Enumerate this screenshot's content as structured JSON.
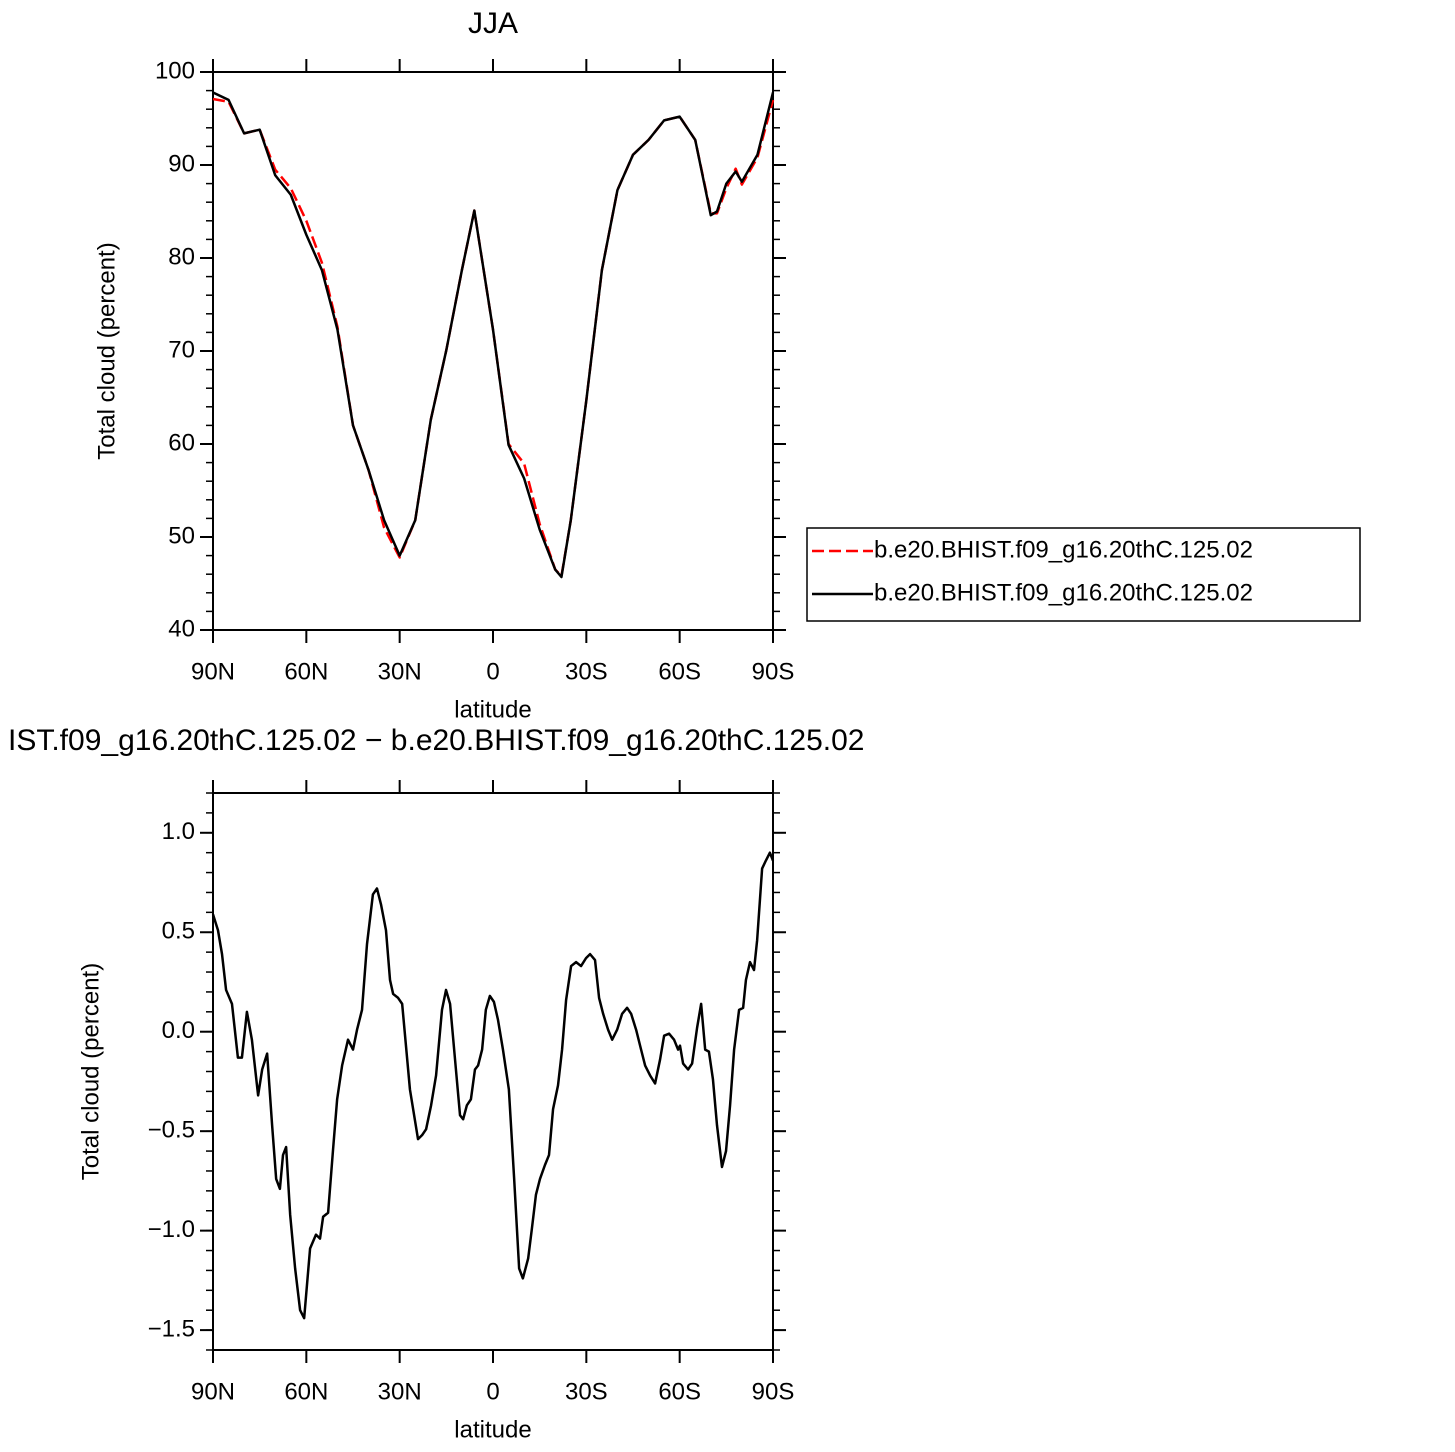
{
  "chart_data": [
    {
      "type": "line",
      "title": "JJA",
      "xlabel": "latitude",
      "ylabel": "Total cloud (percent)",
      "x": [
        90,
        85,
        80,
        75,
        70,
        65,
        60,
        55,
        50,
        45,
        40,
        35,
        30,
        25,
        20,
        15,
        10,
        6,
        0,
        -5,
        -10,
        -15,
        -20,
        -22,
        -25,
        -30,
        -35,
        -40,
        -45,
        -50,
        -55,
        -60,
        -65,
        -70,
        -72,
        -75,
        -78,
        -80,
        -85,
        -90
      ],
      "xlim": [
        90,
        -90
      ],
      "xticks": [
        {
          "value": 90,
          "label": "90N"
        },
        {
          "value": 60,
          "label": "60N"
        },
        {
          "value": 30,
          "label": "30N"
        },
        0,
        {
          "value": -30,
          "label": "30S"
        },
        {
          "value": -60,
          "label": "60S"
        },
        {
          "value": -90,
          "label": "90S"
        }
      ],
      "ylim": [
        40,
        100
      ],
      "yticks": [
        40,
        50,
        60,
        70,
        80,
        90,
        100
      ],
      "legend": "right",
      "series": [
        {
          "name": "b.e20.BHIST.f09_g16.20thC.125.02",
          "color": "#ff0000",
          "line_style": "dashed",
          "values": [
            97.1,
            96.8,
            93.4,
            93.8,
            89.5,
            87.5,
            84.0,
            79.5,
            72.6,
            62.0,
            57.2,
            51.0,
            47.8,
            51.8,
            62.6,
            70.1,
            78.7,
            85.1,
            72.3,
            60.0,
            57.9,
            51.4,
            46.5,
            45.8,
            51.8,
            64.7,
            78.7,
            87.3,
            91.1,
            92.7,
            94.8,
            95.2,
            92.7,
            84.8,
            84.8,
            87.5,
            89.6,
            87.9,
            90.8,
            97.0
          ]
        },
        {
          "name": "b.e20.BHIST.f09_g16.20thC.125.02",
          "color": "#000000",
          "line_style": "solid",
          "values": [
            97.8,
            97.0,
            93.4,
            93.8,
            88.9,
            86.8,
            82.5,
            78.7,
            72.3,
            62.0,
            57.2,
            51.8,
            48.0,
            51.8,
            62.6,
            70.1,
            78.7,
            85.1,
            72.3,
            59.9,
            56.3,
            50.8,
            46.5,
            45.7,
            51.8,
            64.7,
            78.7,
            87.3,
            91.1,
            92.7,
            94.8,
            95.2,
            92.7,
            84.6,
            85.0,
            88.0,
            89.3,
            88.2,
            91.1,
            97.8
          ]
        }
      ]
    },
    {
      "type": "line",
      "title": "IST.f09_g16.20thC.125.02 − b.e20.BHIST.f09_g16.20thC.125.02",
      "xlabel": "latitude",
      "ylabel": "Total cloud (percent)",
      "x": [
        90,
        88.4,
        87.1,
        85.8,
        83.9,
        82,
        80.7,
        79.1,
        77.5,
        75.5,
        74.2,
        72.6,
        71,
        69.7,
        68.5,
        67.5,
        66.5,
        65.2,
        63.6,
        62,
        60.7,
        58.8,
        56.9,
        55.6,
        54.6,
        53,
        51.4,
        50.1,
        48.5,
        46.6,
        45,
        43.7,
        42.1,
        40.5,
        38.6,
        37.3,
        36,
        34.4,
        33.1,
        32.1,
        30.5,
        29.2,
        26.7,
        24.1,
        22.8,
        21.5,
        19.9,
        18.3,
        16.4,
        15.1,
        13.8,
        12.2,
        10.6,
        9.6,
        8.4,
        7.1,
        5.8,
        4.8,
        3.5,
        2.3,
        1,
        -0.3,
        -1.6,
        -3.2,
        -5.1,
        -6.8,
        -8.4,
        -9.6,
        -11.3,
        -12.5,
        -13.8,
        -15.1,
        -16.7,
        -18,
        -19.3,
        -20.9,
        -22.2,
        -23.5,
        -25.1,
        -26.7,
        -28.3,
        -29.9,
        -31.2,
        -32.8,
        -34.1,
        -35.4,
        -37,
        -38.3,
        -39.9,
        -41.5,
        -43.1,
        -44.4,
        -46,
        -47.6,
        -48.9,
        -50.5,
        -52.1,
        -53.7,
        -55,
        -56.6,
        -58.2,
        -59.5,
        -60.1,
        -61.1,
        -62.7,
        -64,
        -65.6,
        -66.9,
        -68.2,
        -69.4,
        -70.7,
        -72,
        -73.6,
        -74.9,
        -76.2,
        -77.5,
        -79.1,
        -80.4,
        -81.3,
        -82.6,
        -83.9,
        -84.9,
        -86.5,
        -87.7,
        -89,
        -90
      ],
      "xlim": [
        90,
        -90
      ],
      "xticks": [
        {
          "value": 90,
          "label": "90N"
        },
        {
          "value": 60,
          "label": "60N"
        },
        {
          "value": 30,
          "label": "30N"
        },
        0,
        {
          "value": -30,
          "label": "30S"
        },
        {
          "value": -60,
          "label": "60S"
        },
        {
          "value": -90,
          "label": "90S"
        }
      ],
      "ylim": [
        -1.6,
        1.2
      ],
      "yticks": [
        {
          "value": -1.5,
          "label": "−1.5"
        },
        {
          "value": -1,
          "label": "−1.0"
        },
        {
          "value": -0.5,
          "label": "−0.5"
        },
        {
          "value": 0,
          "label": "0.0"
        },
        0.5,
        {
          "value": 1,
          "label": "1.0"
        }
      ],
      "series": [
        {
          "color": "#000000",
          "line_style": "solid",
          "values": [
            0.59,
            0.51,
            0.39,
            0.21,
            0.14,
            -0.13,
            -0.13,
            0.1,
            -0.04,
            -0.32,
            -0.19,
            -0.11,
            -0.47,
            -0.74,
            -0.79,
            -0.62,
            -0.58,
            -0.92,
            -1.19,
            -1.4,
            -1.44,
            -1.09,
            -1.02,
            -1.04,
            -0.93,
            -0.91,
            -0.59,
            -0.34,
            -0.17,
            -0.04,
            -0.09,
            0.01,
            0.11,
            0.44,
            0.69,
            0.72,
            0.64,
            0.51,
            0.26,
            0.19,
            0.17,
            0.14,
            -0.29,
            -0.54,
            -0.52,
            -0.49,
            -0.37,
            -0.22,
            0.11,
            0.21,
            0.14,
            -0.14,
            -0.42,
            -0.44,
            -0.37,
            -0.34,
            -0.19,
            -0.17,
            -0.09,
            0.11,
            0.18,
            0.15,
            0.06,
            -0.09,
            -0.29,
            -0.74,
            -1.19,
            -1.24,
            -1.14,
            -0.99,
            -0.82,
            -0.74,
            -0.67,
            -0.62,
            -0.39,
            -0.27,
            -0.09,
            0.16,
            0.33,
            0.35,
            0.33,
            0.37,
            0.39,
            0.36,
            0.17,
            0.09,
            0.01,
            -0.04,
            0.01,
            0.09,
            0.12,
            0.09,
            0.01,
            -0.09,
            -0.17,
            -0.22,
            -0.26,
            -0.14,
            -0.02,
            -0.01,
            -0.04,
            -0.09,
            -0.07,
            -0.16,
            -0.19,
            -0.16,
            0.02,
            0.14,
            -0.09,
            -0.1,
            -0.24,
            -0.47,
            -0.68,
            -0.6,
            -0.37,
            -0.09,
            0.11,
            0.12,
            0.26,
            0.35,
            0.31,
            0.46,
            0.82,
            0.86,
            0.9,
            0.86
          ]
        }
      ]
    }
  ]
}
